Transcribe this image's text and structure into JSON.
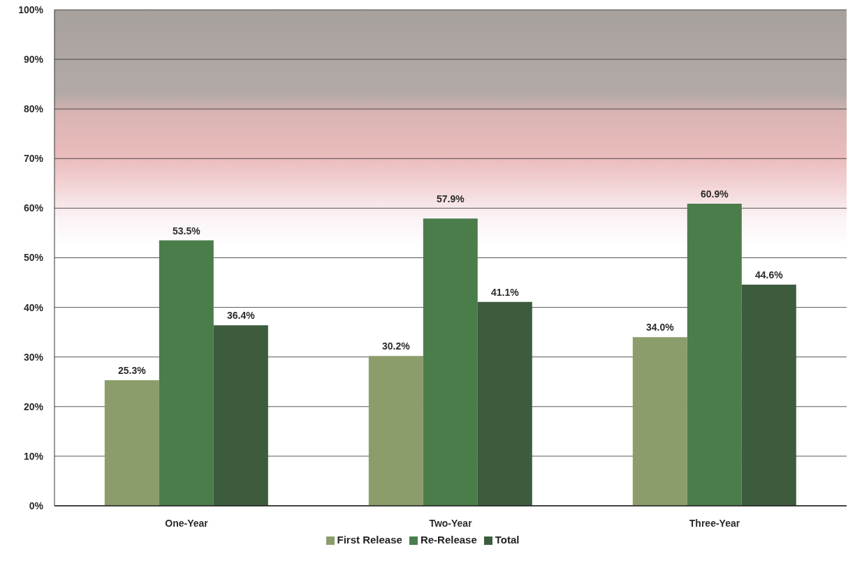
{
  "chart_data": {
    "type": "bar",
    "categories": [
      "One-Year",
      "Two-Year",
      "Three-Year"
    ],
    "series": [
      {
        "name": "First Release",
        "color": "#8c9d6c",
        "values": [
          25.3,
          30.2,
          34.0
        ],
        "value_labels": [
          "25.3%",
          "30.2%",
          "34.0%"
        ]
      },
      {
        "name": "Re-Release",
        "color": "#4b7d4b",
        "values": [
          53.5,
          57.9,
          60.9
        ],
        "value_labels": [
          "53.5%",
          "57.9%",
          "60.9%"
        ]
      },
      {
        "name": "Total",
        "color": "#3d5c3e",
        "values": [
          36.4,
          41.1,
          44.6
        ],
        "value_labels": [
          "36.4%",
          "41.1%",
          "44.6%"
        ]
      }
    ],
    "ylim": [
      0,
      100
    ],
    "yticks": [
      {
        "value": 0,
        "label": "0%"
      },
      {
        "value": 10,
        "label": "10%"
      },
      {
        "value": 20,
        "label": "20%"
      },
      {
        "value": 30,
        "label": "30%"
      },
      {
        "value": 40,
        "label": "40%"
      },
      {
        "value": 50,
        "label": "50%"
      },
      {
        "value": 60,
        "label": "60%"
      },
      {
        "value": 70,
        "label": "70%"
      },
      {
        "value": 80,
        "label": "80%"
      },
      {
        "value": 90,
        "label": "90%"
      },
      {
        "value": 100,
        "label": "100%"
      }
    ],
    "grid": "y",
    "legend": "bottom"
  }
}
